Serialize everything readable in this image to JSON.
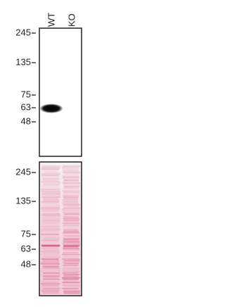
{
  "lanes": [
    "WT",
    "KO"
  ],
  "top_panel": {
    "markers": [
      "245",
      "135",
      "75",
      "63",
      "48"
    ]
  },
  "bottom_panel": {
    "markers": [
      "245",
      "135",
      "75",
      "63",
      "48"
    ]
  }
}
